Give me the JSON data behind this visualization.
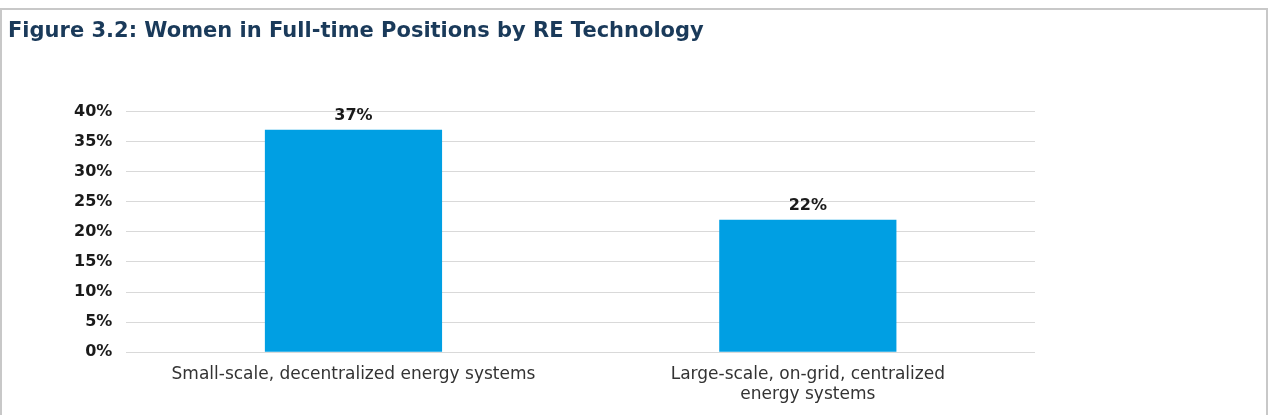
{
  "chart_data": {
    "type": "bar",
    "title": "Figure 3.2: Women in Full-time Positions by RE Technology",
    "categories": [
      "Small-scale, decentralized energy systems",
      "Large-scale, on-grid, centralized energy systems"
    ],
    "values": [
      37,
      22
    ],
    "color": "#009fe3",
    "value_labels": [
      "37%",
      "22%"
    ],
    "ylim": [
      0,
      40
    ],
    "yticks": [
      {
        "value": 0,
        "label": "0%"
      },
      {
        "value": 5,
        "label": "5%"
      },
      {
        "value": 10,
        "label": "10%"
      },
      {
        "value": 15,
        "label": "15%"
      },
      {
        "value": 20,
        "label": "20%"
      },
      {
        "value": 25,
        "label": "25%"
      },
      {
        "value": 30,
        "label": "30%"
      },
      {
        "value": 35,
        "label": "35%"
      },
      {
        "value": 40,
        "label": "40%"
      }
    ],
    "grid": "y",
    "legend": false
  }
}
